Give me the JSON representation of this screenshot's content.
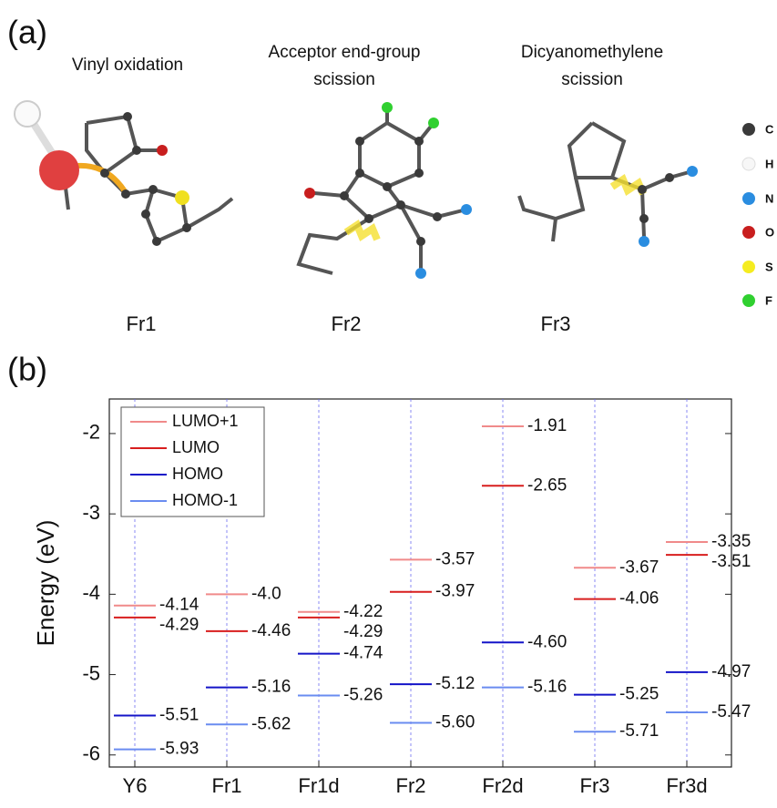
{
  "panel_a": {
    "label": "(a)",
    "titles": [
      [
        "Vinyl oxidation"
      ],
      [
        "Acceptor end-group",
        "scission"
      ],
      [
        "Dicyanomethylene",
        "scission"
      ]
    ],
    "fragments": [
      "Fr1",
      "Fr2",
      "Fr3"
    ],
    "atoms": [
      "C",
      "H",
      "N",
      "O",
      "S",
      "F"
    ]
  },
  "panel_b_label": "(b)",
  "chart_data": {
    "type": "energy-level",
    "ylabel": "Energy (eV)",
    "categories": [
      "Y6",
      "Fr1",
      "Fr1d",
      "Fr2",
      "Fr2d",
      "Fr3",
      "Fr3d"
    ],
    "series": [
      {
        "name": "LUMO+1",
        "color": "#f08a8a",
        "values": [
          -4.14,
          -4.0,
          -4.22,
          -3.57,
          -1.91,
          -3.67,
          -3.35
        ],
        "value_labels": [
          "-4.14",
          "-4.0",
          "-4.22",
          "-3.57",
          "-1.91",
          "-3.67",
          "-3.35"
        ]
      },
      {
        "name": "LUMO",
        "color": "#d81e1e",
        "values": [
          -4.29,
          -4.46,
          -4.29,
          -3.97,
          -2.65,
          -4.06,
          -3.51
        ],
        "value_labels": [
          "-4.29",
          "-4.46",
          "-4.29",
          "-3.97",
          "-2.65",
          "-4.06",
          "-3.51"
        ]
      },
      {
        "name": "HOMO",
        "color": "#1414c8",
        "values": [
          -5.51,
          -5.16,
          -4.74,
          -5.12,
          -4.6,
          -5.25,
          -4.97
        ],
        "value_labels": [
          "-5.51",
          "-5.16",
          "-4.74",
          "-5.12",
          "-4.60",
          "-5.25",
          "-4.97"
        ]
      },
      {
        "name": "HOMO-1",
        "color": "#6a8cf0",
        "values": [
          -5.93,
          -5.62,
          -5.26,
          -5.6,
          -5.16,
          -5.71,
          -5.47
        ],
        "value_labels": [
          "-5.93",
          "-5.62",
          "-5.26",
          "-5.60",
          "-5.16",
          "-5.71",
          "-5.47"
        ]
      }
    ],
    "ylim": [
      -6.15,
      -1.57
    ],
    "yticks": [
      -6,
      -5,
      -4,
      -3,
      -2
    ],
    "legend": "top-left"
  }
}
